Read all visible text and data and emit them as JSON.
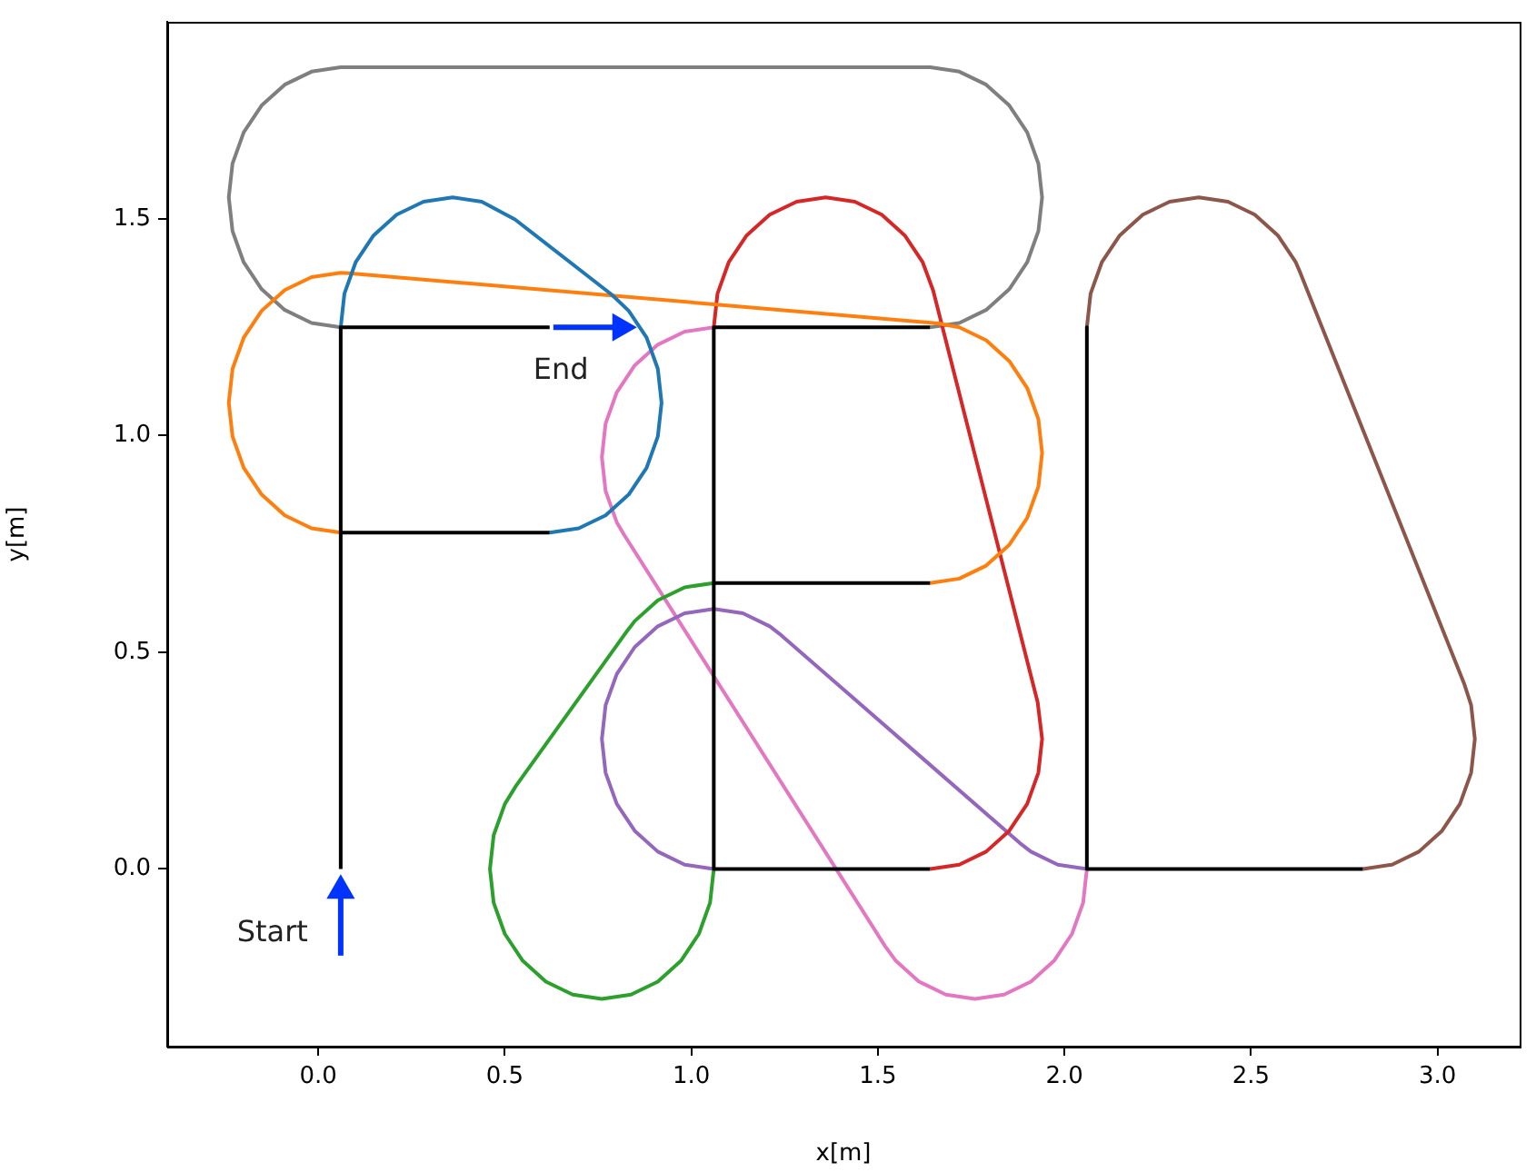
{
  "chart_data": {
    "type": "line",
    "xlabel": "x[m]",
    "ylabel": "y[m]",
    "xlim": [
      -0.405,
      3.22
    ],
    "ylim": [
      -0.41,
      1.955
    ],
    "xticks": [
      {
        "value": 0,
        "label": "0.0"
      },
      {
        "value": 0.5,
        "label": "0.5"
      },
      {
        "value": 1,
        "label": "1.0"
      },
      {
        "value": 1.5,
        "label": "1.5"
      },
      {
        "value": 2,
        "label": "2.0"
      },
      {
        "value": 2.5,
        "label": "2.5"
      },
      {
        "value": 3,
        "label": "3.0"
      }
    ],
    "yticks": [
      {
        "value": 0,
        "label": "0.0"
      },
      {
        "value": 0.5,
        "label": "0.5"
      },
      {
        "value": 1,
        "label": "1.0"
      },
      {
        "value": 1.5,
        "label": "1.5"
      }
    ],
    "grid": false,
    "legend": false,
    "annotations": [
      "Start",
      "End"
    ],
    "series": [
      {
        "color": "#000000",
        "x": [
          0.06,
          0.06,
          0.62
        ],
        "values": [
          0,
          1.25,
          1.25
        ]
      },
      {
        "color": "#000000",
        "x": [
          0.06,
          0.62
        ],
        "values": [
          0.776,
          0.776
        ]
      },
      {
        "color": "#000000",
        "x": [
          1.64,
          1.06,
          1.06,
          1.64
        ],
        "values": [
          1.25,
          1.25,
          0,
          0
        ]
      },
      {
        "color": "#000000",
        "x": [
          1.06,
          1.64
        ],
        "values": [
          0.66,
          0.66
        ]
      },
      {
        "color": "#000000",
        "x": [
          2.06,
          2.06,
          2.8
        ],
        "values": [
          1.25,
          0,
          0
        ]
      },
      {
        "color": "#1f77b4",
        "x": [
          0.62,
          0.698,
          0.77,
          0.832,
          0.88,
          0.91,
          0.92,
          0.91,
          0.88,
          0.832,
          0.787,
          0.527,
          0.438,
          0.36,
          0.282,
          0.21,
          0.148,
          0.1,
          0.07,
          0.06
        ],
        "values": [
          0.776,
          0.786,
          0.816,
          0.864,
          0.926,
          0.998,
          1.076,
          1.154,
          1.226,
          1.288,
          1.325,
          1.499,
          1.54,
          1.55,
          1.54,
          1.51,
          1.462,
          1.4,
          1.328,
          1.25
        ]
      },
      {
        "color": "#ff7f0e",
        "x": [
          0.06,
          -0.018,
          -0.09,
          -0.152,
          -0.2,
          -0.23,
          -0.24,
          -0.23,
          -0.2,
          -0.152,
          -0.09,
          -0.018,
          0.06,
          0.082,
          1.662,
          1.718,
          1.79,
          1.852,
          1.9,
          1.93,
          1.94,
          1.93,
          1.9,
          1.852,
          1.79,
          1.718,
          1.64
        ],
        "values": [
          0.776,
          0.786,
          0.816,
          0.864,
          0.926,
          0.998,
          1.076,
          1.154,
          1.226,
          1.288,
          1.336,
          1.366,
          1.376,
          1.375,
          1.259,
          1.25,
          1.22,
          1.172,
          1.11,
          1.038,
          0.96,
          0.882,
          0.81,
          0.748,
          0.7,
          0.67,
          0.66
        ]
      },
      {
        "color": "#2ca02c",
        "x": [
          1.06,
          0.982,
          0.91,
          0.848,
          0.83,
          0.53,
          0.5,
          0.47,
          0.46,
          0.47,
          0.5,
          0.548,
          0.61,
          0.682,
          0.76,
          0.838,
          0.91,
          0.972,
          1.02,
          1.05,
          1.06
        ],
        "values": [
          0.66,
          0.65,
          0.62,
          0.572,
          0.552,
          0.192,
          0.15,
          0.078,
          0,
          -0.078,
          -0.15,
          -0.212,
          -0.26,
          -0.29,
          -0.3,
          -0.29,
          -0.26,
          -0.212,
          -0.15,
          -0.078,
          0
        ]
      },
      {
        "color": "#d62728",
        "x": [
          1.06,
          1.07,
          1.1,
          1.148,
          1.21,
          1.282,
          1.36,
          1.438,
          1.51,
          1.572,
          1.62,
          1.648,
          1.928,
          1.94,
          1.93,
          1.9,
          1.852,
          1.79,
          1.718,
          1.64
        ],
        "values": [
          1.25,
          1.328,
          1.4,
          1.462,
          1.51,
          1.54,
          1.55,
          1.54,
          1.51,
          1.462,
          1.4,
          1.335,
          0.385,
          0.3,
          0.222,
          0.15,
          0.088,
          0.04,
          0.01,
          0
        ]
      },
      {
        "color": "#9467bd",
        "x": [
          1.06,
          0.982,
          0.91,
          0.848,
          0.8,
          0.77,
          0.76,
          0.77,
          0.8,
          0.848,
          0.91,
          0.982,
          1.06,
          1.138,
          1.21,
          1.24,
          1.88,
          1.91,
          1.982,
          2.06
        ],
        "values": [
          0,
          0.01,
          0.04,
          0.088,
          0.15,
          0.222,
          0.3,
          0.378,
          0.45,
          0.512,
          0.56,
          0.59,
          0.6,
          0.59,
          0.56,
          0.54,
          0.06,
          0.04,
          0.01,
          0
        ]
      },
      {
        "color": "#8c564b",
        "x": [
          2.06,
          2.07,
          2.1,
          2.148,
          2.21,
          2.282,
          2.36,
          2.438,
          2.51,
          2.572,
          2.62,
          2.632,
          3.072,
          3.09,
          3.1,
          3.09,
          3.06,
          3.012,
          2.95,
          2.878,
          2.8
        ],
        "values": [
          1.25,
          1.328,
          1.4,
          1.462,
          1.51,
          1.54,
          1.55,
          1.54,
          1.51,
          1.462,
          1.4,
          1.376,
          0.426,
          0.378,
          0.3,
          0.222,
          0.15,
          0.088,
          0.04,
          0.01,
          0
        ]
      },
      {
        "color": "#e377c2",
        "x": [
          1.06,
          0.982,
          0.91,
          0.848,
          0.8,
          0.77,
          0.76,
          0.77,
          0.8,
          0.819,
          1.519,
          1.548,
          1.61,
          1.682,
          1.76,
          1.838,
          1.91,
          1.972,
          2.02,
          2.05,
          2.06
        ],
        "values": [
          1.25,
          1.24,
          1.21,
          1.162,
          1.1,
          1.028,
          0.95,
          0.872,
          0.8,
          0.772,
          -0.178,
          -0.212,
          -0.26,
          -0.29,
          -0.3,
          -0.29,
          -0.26,
          -0.212,
          -0.15,
          -0.078,
          0
        ]
      },
      {
        "color": "#7f7f7f",
        "x": [
          0.06,
          -0.018,
          -0.09,
          -0.152,
          -0.2,
          -0.23,
          -0.24,
          -0.23,
          -0.2,
          -0.152,
          -0.09,
          -0.018,
          0.06,
          1.64,
          1.718,
          1.79,
          1.852,
          1.9,
          1.93,
          1.94,
          1.93,
          1.9,
          1.852,
          1.79,
          1.718,
          1.64
        ],
        "values": [
          1.25,
          1.26,
          1.29,
          1.338,
          1.4,
          1.472,
          1.55,
          1.628,
          1.7,
          1.762,
          1.81,
          1.84,
          1.85,
          1.85,
          1.84,
          1.81,
          1.762,
          1.7,
          1.628,
          1.55,
          1.472,
          1.4,
          1.338,
          1.29,
          1.26,
          1.25
        ]
      },
      {
        "color": "#0033ff",
        "marker": "triangle",
        "x": [
          0.06,
          0.06
        ],
        "values": [
          -0.2,
          -0.05
        ]
      },
      {
        "color": "#0033ff",
        "marker": "triangle",
        "x": [
          0.63,
          0.81
        ],
        "values": [
          1.25,
          1.25
        ]
      }
    ]
  }
}
